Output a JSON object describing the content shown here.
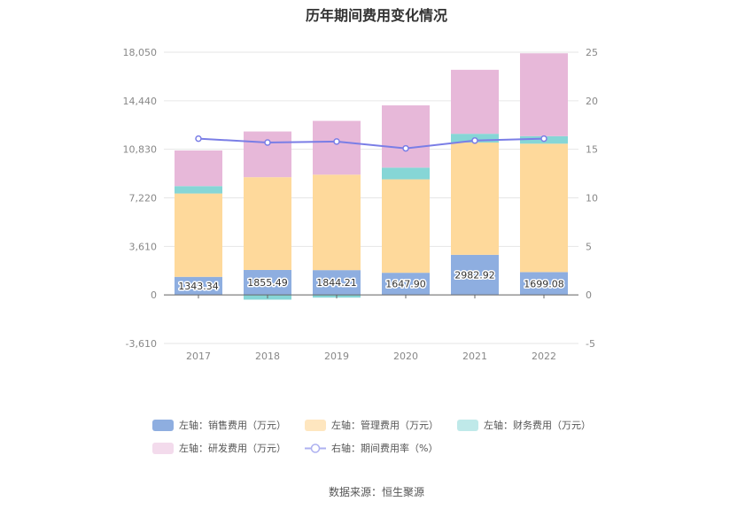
{
  "title": "历年期间费用变化情况",
  "source": "数据来源：恒生聚源",
  "chart_data": {
    "type": "bar",
    "stacked": true,
    "categories": [
      "2017",
      "2018",
      "2019",
      "2020",
      "2021",
      "2022"
    ],
    "left_axis": {
      "ylim": [
        -3610,
        18050
      ],
      "ticks": [
        "-3,610",
        "0",
        "3,610",
        "7,220",
        "10,830",
        "14,440",
        "18,050"
      ]
    },
    "right_axis": {
      "ylim": [
        -5,
        25
      ],
      "ticks": [
        "-5",
        "0",
        "5",
        "10",
        "15",
        "20",
        "25"
      ]
    },
    "series": [
      {
        "name": "左轴：销售费用（万元）",
        "axis": "left",
        "color": "#8eaee0",
        "values": [
          1343.34,
          1855.49,
          1844.21,
          1647.9,
          2982.92,
          1699.08
        ]
      },
      {
        "name": "左轴：管理费用（万元）",
        "axis": "left",
        "color": "#fed99b",
        "values": [
          6200,
          6900,
          7100,
          6950,
          8350,
          9550
        ]
      },
      {
        "name": "左轴：财务费用（万元）",
        "axis": "left",
        "color": "#86d6d6",
        "values": [
          550,
          -350,
          -200,
          870,
          650,
          560
        ]
      },
      {
        "name": "左轴：研发费用（万元）",
        "axis": "left",
        "color": "#e7b8d9",
        "values": [
          2650,
          3400,
          4000,
          4630,
          4760,
          6160
        ]
      },
      {
        "name": "右轴：期间费用率（%）",
        "axis": "right",
        "type": "line",
        "color": "#7a7ee6",
        "values": [
          16.1,
          15.7,
          15.8,
          15.1,
          15.9,
          16.1
        ]
      }
    ],
    "data_labels": [
      "1343.34",
      "1855.49",
      "1844.21",
      "1647.90",
      "2982.92",
      "1699.08"
    ],
    "legend_position": "bottom",
    "grid": true
  },
  "legend": [
    {
      "label": "左轴：销售费用（万元）",
      "color": "#8eaee0",
      "kind": "bar"
    },
    {
      "label": "左轴：管理费用（万元）",
      "color": "#fee6bf",
      "kind": "bar"
    },
    {
      "label": "左轴：财务费用（万元）",
      "color": "#bfe9e9",
      "kind": "bar"
    },
    {
      "label": "左轴：研发费用（万元）",
      "color": "#f3dbec",
      "kind": "bar"
    },
    {
      "label": "右轴：期间费用率（%）",
      "color": "#aeb1f0",
      "kind": "line"
    }
  ]
}
